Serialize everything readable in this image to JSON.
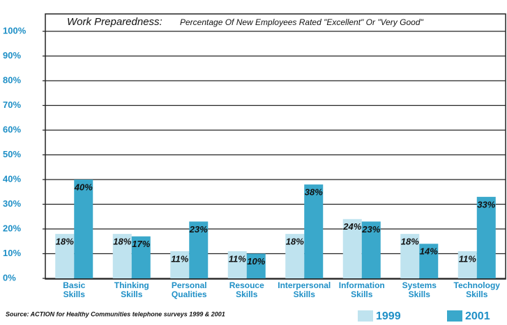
{
  "chart_data": {
    "type": "bar",
    "title": "Work Preparedness:",
    "subtitle": "Percentage Of New Employees Rated \"Excellent\" Or \"Very Good\"",
    "source": "Source: ACTION for Healthy Communities telephone surveys 1999 & 2001",
    "categories": [
      "Basic Skills",
      "Thinking Skills",
      "Personal Qualities",
      "Resouce Skills",
      "Interpersonal Skills",
      "Information Skills",
      "Systems Skills",
      "Technology Skills"
    ],
    "series": [
      {
        "name": "1999",
        "color": "#bfe3ef",
        "values": [
          18,
          18,
          11,
          11,
          18,
          24,
          18,
          11
        ],
        "value_labels": [
          "18%",
          "18%",
          "11%",
          "11%",
          "18%",
          "24%",
          "18%",
          "11%"
        ]
      },
      {
        "name": "2001",
        "color": "#3aa8cb",
        "values": [
          40,
          17,
          23,
          10,
          38,
          23,
          14,
          33
        ],
        "value_labels": [
          "40%",
          "17%",
          "23%",
          "10%",
          "38%",
          "23%",
          "14%",
          "33%"
        ]
      }
    ],
    "ylim": [
      0,
      100
    ],
    "yticks": [
      {
        "value": 0,
        "label": "0%"
      },
      {
        "value": 10,
        "label": "10%"
      },
      {
        "value": 20,
        "label": "20%"
      },
      {
        "value": 30,
        "label": "30%"
      },
      {
        "value": 40,
        "label": "40%"
      },
      {
        "value": 50,
        "label": "50%"
      },
      {
        "value": 60,
        "label": "60%"
      },
      {
        "value": 70,
        "label": "70%"
      },
      {
        "value": 80,
        "label": "80%"
      },
      {
        "value": 90,
        "label": "90%"
      },
      {
        "value": 100,
        "label": "100%"
      }
    ],
    "grid": true
  }
}
